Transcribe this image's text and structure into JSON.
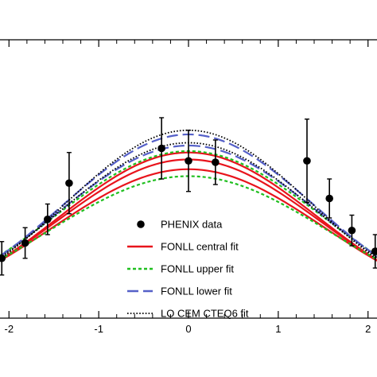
{
  "chart_data": {
    "type": "line",
    "title": "",
    "xlabel": "",
    "ylabel": "",
    "xlim": [
      -2.1,
      2.1
    ],
    "ylim": [
      0.0,
      1.0
    ],
    "x_ticks": [
      -2,
      -1,
      0,
      1,
      2
    ],
    "x_tick_labels": [
      "-2",
      "-1",
      "0",
      "1",
      "2"
    ],
    "grid": false,
    "legend_position": "center",
    "colors": {
      "data": "#000000",
      "central": "#e8141c",
      "upper": "#1fbf1f",
      "lower": "#5560c8",
      "cem": "#000000"
    },
    "points": {
      "name": "PHENIX data",
      "x": [
        -2.08,
        -1.82,
        -1.57,
        -1.33,
        -0.3,
        0.0,
        0.3,
        1.32,
        1.57,
        1.82,
        2.08
      ],
      "y": [
        0.215,
        0.27,
        0.355,
        0.485,
        0.61,
        0.565,
        0.56,
        0.565,
        0.43,
        0.315,
        0.24
      ],
      "err": [
        0.06,
        0.055,
        0.055,
        0.11,
        0.11,
        0.11,
        0.08,
        0.15,
        0.07,
        0.055,
        0.06
      ]
    },
    "series": [
      {
        "name": "FONLL central fit",
        "style": "solid",
        "peak": 0.57,
        "width": 1.48,
        "x": [
          -2.1,
          -1.5,
          -1.0,
          -0.5,
          0.0,
          0.5,
          1.0,
          1.5,
          2.1
        ],
        "y": [
          0.228,
          0.376,
          0.472,
          0.542,
          0.57,
          0.542,
          0.472,
          0.376,
          0.228
        ]
      },
      {
        "name": "FONLL central fit",
        "style": "solid",
        "peak": 0.595,
        "width": 1.45,
        "x": [
          -2.1,
          -1.5,
          -1.0,
          -0.5,
          0.0,
          0.5,
          1.0,
          1.5,
          2.1
        ],
        "y": [
          0.218,
          0.381,
          0.489,
          0.563,
          0.595,
          0.563,
          0.489,
          0.381,
          0.218
        ]
      },
      {
        "name": "FONLL central fit",
        "style": "solid",
        "peak": 0.535,
        "width": 1.52,
        "x": [
          -2.1,
          -1.5,
          -1.0,
          -0.5,
          0.0,
          0.5,
          1.0,
          1.5,
          2.1
        ],
        "y": [
          0.239,
          0.367,
          0.451,
          0.511,
          0.535,
          0.511,
          0.451,
          0.367,
          0.239
        ]
      },
      {
        "name": "FONLL upper fit",
        "style": "dashed",
        "peak": 0.6,
        "width": 1.5,
        "x": [
          -2.1,
          -1.5,
          -1.0,
          -0.5,
          0.0,
          0.5,
          1.0,
          1.5,
          2.1
        ],
        "y": [
          0.247,
          0.405,
          0.511,
          0.57,
          0.6,
          0.57,
          0.511,
          0.405,
          0.247
        ]
      },
      {
        "name": "FONLL upper fit",
        "style": "dashed",
        "peak": 0.51,
        "width": 1.58,
        "x": [
          -2.1,
          -1.5,
          -1.0,
          -0.5,
          0.0,
          0.5,
          1.0,
          1.5,
          2.1
        ],
        "y": [
          0.25,
          0.358,
          0.434,
          0.486,
          0.51,
          0.486,
          0.434,
          0.358,
          0.25
        ]
      },
      {
        "name": "FONLL lower fit",
        "style": "longdash",
        "peak": 0.66,
        "width": 1.42,
        "x": [
          -2.1,
          -1.5,
          -1.0,
          -0.5,
          0.0,
          0.5,
          1.0,
          1.5,
          2.1
        ],
        "y": [
          0.221,
          0.381,
          0.491,
          0.575,
          0.66,
          0.575,
          0.491,
          0.381,
          0.221
        ]
      },
      {
        "name": "FONLL lower fit",
        "style": "longdash",
        "peak": 0.62,
        "width": 1.47,
        "x": [
          -2.1,
          -1.5,
          -1.0,
          -0.5,
          0.0,
          0.5,
          1.0,
          1.5,
          2.1
        ],
        "y": [
          0.228,
          0.391,
          0.505,
          0.588,
          0.62,
          0.588,
          0.505,
          0.391,
          0.228
        ]
      },
      {
        "name": "LO CEM CTEQ6 fit",
        "style": "dotted",
        "peak": 0.675,
        "width": 1.38,
        "x": [
          -2.1,
          -1.5,
          -1.0,
          -0.5,
          0.0,
          0.5,
          1.0,
          1.5,
          2.1
        ],
        "y": [
          0.212,
          0.385,
          0.518,
          0.63,
          0.675,
          0.63,
          0.518,
          0.385,
          0.212
        ]
      },
      {
        "name": "LO CEM CTEQ6 fit",
        "style": "dotted",
        "peak": 0.63,
        "width": 1.44,
        "x": [
          -2.1,
          -1.5,
          -1.0,
          -0.5,
          0.0,
          0.5,
          1.0,
          1.5,
          2.1
        ],
        "y": [
          0.219,
          0.39,
          0.508,
          0.594,
          0.63,
          0.594,
          0.508,
          0.39,
          0.219
        ]
      }
    ],
    "legend": [
      {
        "label": "PHENIX data",
        "symbol": "point"
      },
      {
        "label": "FONLL central fit",
        "symbol": "solid"
      },
      {
        "label": "FONLL upper fit",
        "symbol": "dashed"
      },
      {
        "label": "FONLL lower fit",
        "symbol": "longdash"
      },
      {
        "label": "LO CEM CTEQ6 fit",
        "symbol": "dotted"
      }
    ]
  }
}
